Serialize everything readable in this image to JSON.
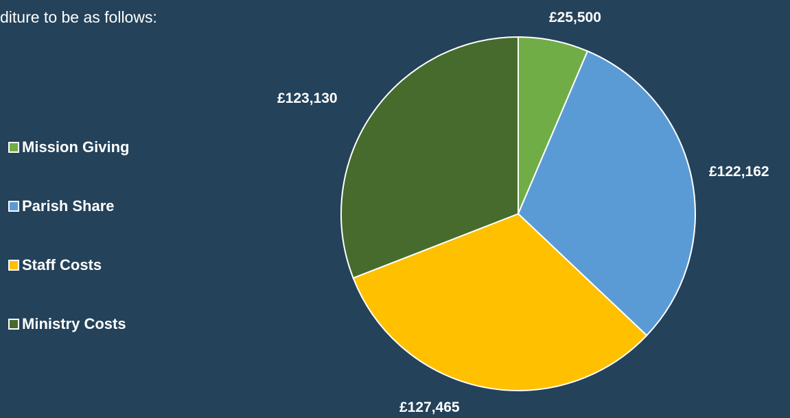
{
  "text": {
    "intro": "diture to be as follows:"
  },
  "chart_data": {
    "type": "pie",
    "categories": [
      "Mission Giving",
      "Parish Share",
      "Staff Costs",
      "Ministry Costs"
    ],
    "values": [
      25500,
      122162,
      127465,
      123130
    ],
    "labels": [
      "£25,500",
      "£122,162",
      "£127,465",
      "£123,130"
    ],
    "colors": [
      "#70AD47",
      "#5B9BD5",
      "#FFC000",
      "#466B2C"
    ],
    "legend": "left"
  }
}
